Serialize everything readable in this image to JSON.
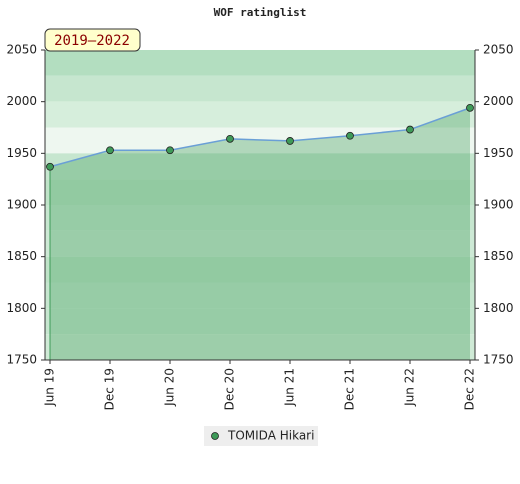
{
  "chart_data": {
    "type": "line",
    "title": "WOF ratinglist",
    "badge": "2019–2022",
    "categories": [
      "Jun 19",
      "Dec 19",
      "Jun 20",
      "Dec 20",
      "Jun 21",
      "Dec 21",
      "Jun 22",
      "Dec 22"
    ],
    "series": [
      {
        "name": "TOMIDA Hikari",
        "color": "#3e9a58",
        "line_color": "#6a9fd6",
        "values": [
          1937,
          1953,
          1953,
          1964,
          1962,
          1967,
          1973,
          1994
        ]
      }
    ],
    "ylim": [
      1750,
      2050
    ],
    "yticks": [
      1750,
      1800,
      1850,
      1900,
      1950,
      2000,
      2050
    ],
    "grid": true
  }
}
